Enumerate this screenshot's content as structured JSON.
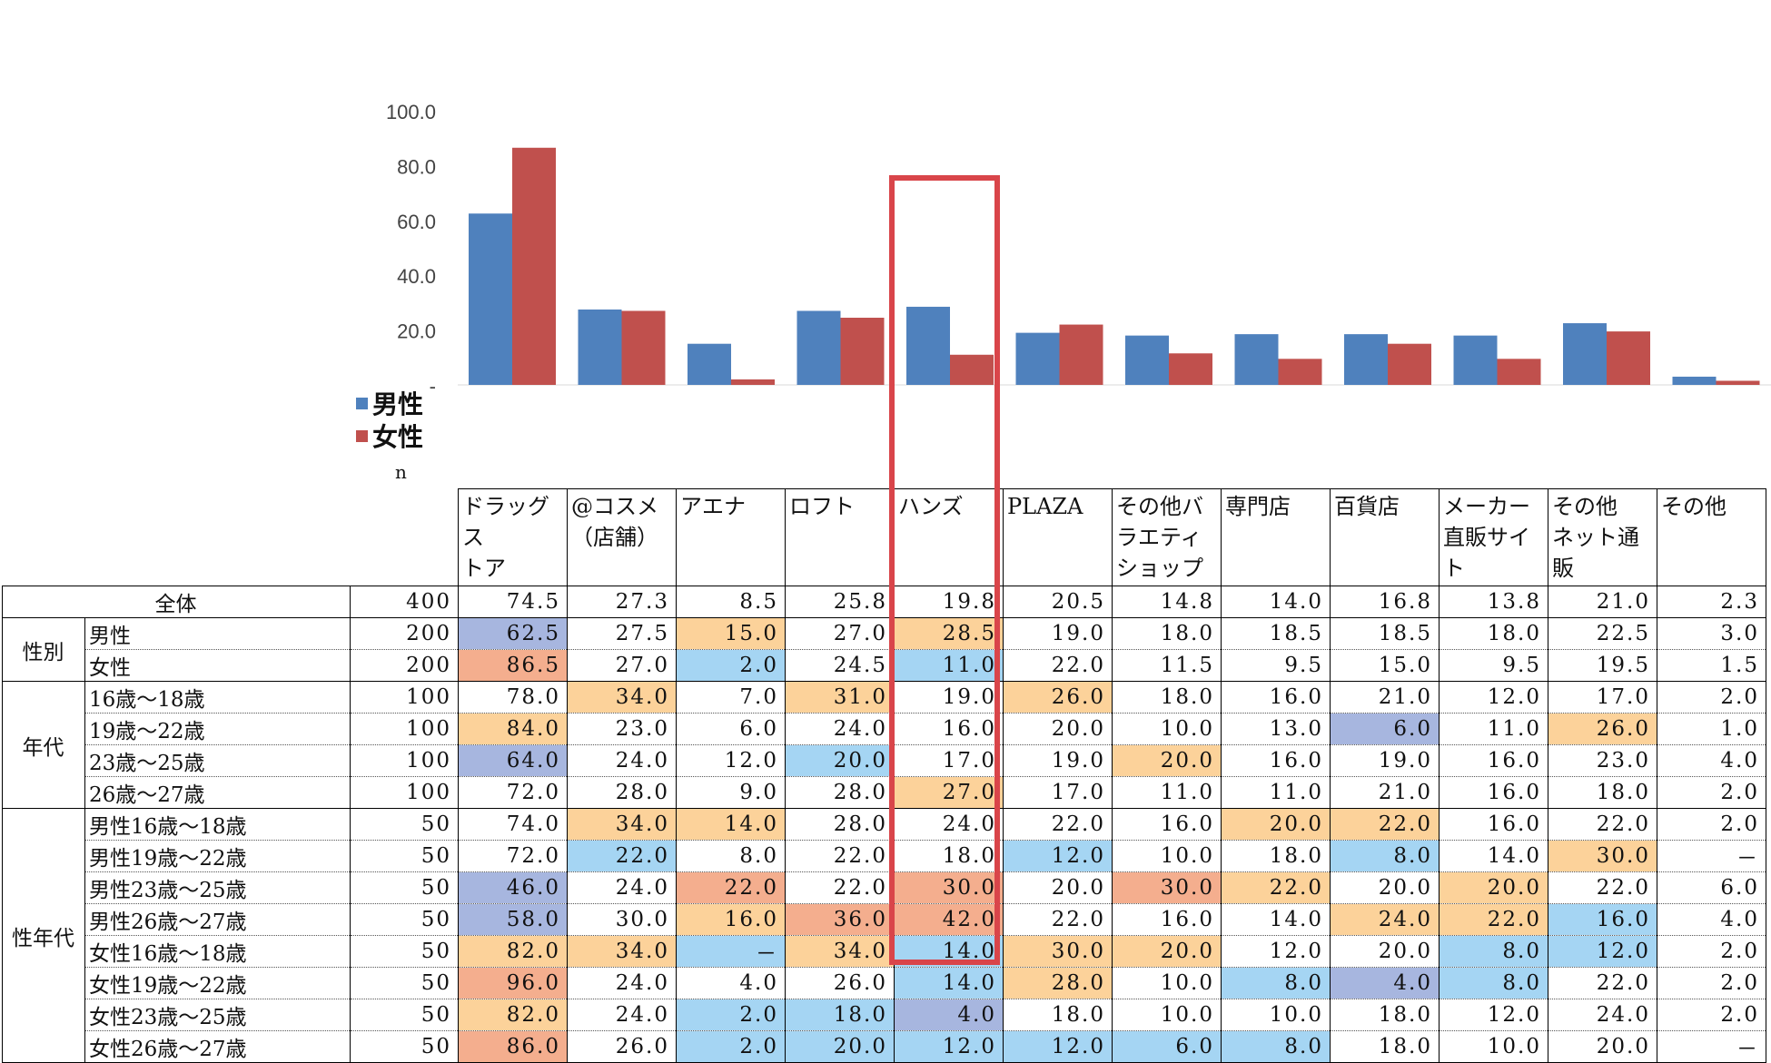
{
  "chart_data": {
    "type": "bar",
    "categories": [
      "ドラッグストア",
      "@コスメ（店舗）",
      "アエナ",
      "ロフト",
      "ハンズ",
      "PLAZA",
      "その他バラエティショップ",
      "専門店",
      "百貨店",
      "メーカー直販サイト",
      "その他ネット通販",
      "その他"
    ],
    "category_header_lines": [
      [
        "ドラッグス",
        "トア"
      ],
      [
        "@コスメ",
        "（店舗）"
      ],
      [
        "アエナ"
      ],
      [
        "ロフト"
      ],
      [
        "ハンズ"
      ],
      [
        "PLAZA"
      ],
      [
        "その他バ",
        "ラエティ",
        "ショップ"
      ],
      [
        "専門店"
      ],
      [
        "百貨店"
      ],
      [
        "メーカー",
        "直販サイ",
        "ト"
      ],
      [
        "その他",
        "ネット通販"
      ],
      [
        "その他"
      ]
    ],
    "series": [
      {
        "name": "男性",
        "color": "#4f81bd",
        "values": [
          62.5,
          27.5,
          15.0,
          27.0,
          28.5,
          19.0,
          18.0,
          18.5,
          18.5,
          18.0,
          22.5,
          3.0
        ]
      },
      {
        "name": "女性",
        "color": "#c0504d",
        "values": [
          86.5,
          27.0,
          2.0,
          24.5,
          11.0,
          22.0,
          11.5,
          9.5,
          15.0,
          9.5,
          19.5,
          1.5
        ]
      }
    ],
    "yticks": [
      "100.0",
      "80.0",
      "60.0",
      "40.0",
      "20.0",
      "-"
    ],
    "ylim": [
      0,
      100
    ],
    "legend_position": "bottom-left",
    "highlighted_category": "ハンズ",
    "table": {
      "n_header": "n",
      "rows": [
        {
          "group": "",
          "label": "全体",
          "n": "400",
          "values": [
            "74.5",
            "27.3",
            "8.5",
            "25.8",
            "19.8",
            "20.5",
            "14.8",
            "14.0",
            "16.8",
            "13.8",
            "21.0",
            "2.3"
          ],
          "shade": [
            "",
            "",
            "",
            "",
            "",
            "",
            "",
            "",
            "",
            "",
            "",
            ""
          ]
        },
        {
          "group": "性別",
          "label": "男性",
          "n": "200",
          "values": [
            "62.5",
            "27.5",
            "15.0",
            "27.0",
            "28.5",
            "19.0",
            "18.0",
            "18.5",
            "18.5",
            "18.0",
            "22.5",
            "3.0"
          ],
          "shade": [
            "lo2",
            "",
            "hi1",
            "",
            "hi1",
            "",
            "",
            "",
            "",
            "",
            "",
            ""
          ]
        },
        {
          "group": "性別",
          "label": "女性",
          "n": "200",
          "values": [
            "86.5",
            "27.0",
            "2.0",
            "24.5",
            "11.0",
            "22.0",
            "11.5",
            "9.5",
            "15.0",
            "9.5",
            "19.5",
            "1.5"
          ],
          "shade": [
            "hi2",
            "",
            "lo1",
            "",
            "lo1",
            "",
            "",
            "",
            "",
            "",
            "",
            ""
          ]
        },
        {
          "group": "年代",
          "label": "16歳～18歳",
          "n": "100",
          "values": [
            "78.0",
            "34.0",
            "7.0",
            "31.0",
            "19.0",
            "26.0",
            "18.0",
            "16.0",
            "21.0",
            "12.0",
            "17.0",
            "2.0"
          ],
          "shade": [
            "",
            "hi1",
            "",
            "hi1",
            "",
            "hi1",
            "",
            "",
            "",
            "",
            "",
            ""
          ]
        },
        {
          "group": "年代",
          "label": "19歳～22歳",
          "n": "100",
          "values": [
            "84.0",
            "23.0",
            "6.0",
            "24.0",
            "16.0",
            "20.0",
            "10.0",
            "13.0",
            "6.0",
            "11.0",
            "26.0",
            "1.0"
          ],
          "shade": [
            "hi1",
            "",
            "",
            "",
            "",
            "",
            "",
            "",
            "lo2",
            "",
            "hi1",
            ""
          ]
        },
        {
          "group": "年代",
          "label": "23歳～25歳",
          "n": "100",
          "values": [
            "64.0",
            "24.0",
            "12.0",
            "20.0",
            "17.0",
            "19.0",
            "20.0",
            "16.0",
            "19.0",
            "16.0",
            "23.0",
            "4.0"
          ],
          "shade": [
            "lo2",
            "",
            "",
            "lo1",
            "",
            "",
            "hi1",
            "",
            "",
            "",
            "",
            ""
          ]
        },
        {
          "group": "年代",
          "label": "26歳～27歳",
          "n": "100",
          "values": [
            "72.0",
            "28.0",
            "9.0",
            "28.0",
            "27.0",
            "17.0",
            "11.0",
            "11.0",
            "21.0",
            "16.0",
            "18.0",
            "2.0"
          ],
          "shade": [
            "",
            "",
            "",
            "",
            "hi1",
            "",
            "",
            "",
            "",
            "",
            "",
            ""
          ]
        },
        {
          "group": "性年代",
          "label": "男性16歳～18歳",
          "n": "50",
          "values": [
            "74.0",
            "34.0",
            "14.0",
            "28.0",
            "24.0",
            "22.0",
            "16.0",
            "20.0",
            "22.0",
            "16.0",
            "22.0",
            "2.0"
          ],
          "shade": [
            "",
            "hi1",
            "hi1",
            "",
            "",
            "",
            "",
            "hi1",
            "hi1",
            "",
            "",
            ""
          ]
        },
        {
          "group": "性年代",
          "label": "男性19歳～22歳",
          "n": "50",
          "values": [
            "72.0",
            "22.0",
            "8.0",
            "22.0",
            "18.0",
            "12.0",
            "10.0",
            "18.0",
            "8.0",
            "14.0",
            "30.0",
            "－"
          ],
          "shade": [
            "",
            "lo1",
            "",
            "",
            "",
            "lo1",
            "",
            "",
            "lo1",
            "",
            "hi1",
            ""
          ]
        },
        {
          "group": "性年代",
          "label": "男性23歳～25歳",
          "n": "50",
          "values": [
            "46.0",
            "24.0",
            "22.0",
            "22.0",
            "30.0",
            "20.0",
            "30.0",
            "22.0",
            "20.0",
            "20.0",
            "22.0",
            "6.0"
          ],
          "shade": [
            "lo2",
            "",
            "hi2",
            "",
            "hi2",
            "",
            "hi2",
            "hi1",
            "",
            "hi1",
            "",
            ""
          ]
        },
        {
          "group": "性年代",
          "label": "男性26歳～27歳",
          "n": "50",
          "values": [
            "58.0",
            "30.0",
            "16.0",
            "36.0",
            "42.0",
            "22.0",
            "16.0",
            "14.0",
            "24.0",
            "22.0",
            "16.0",
            "4.0"
          ],
          "shade": [
            "lo2",
            "",
            "hi1",
            "hi2",
            "hi2",
            "",
            "",
            "",
            "hi1",
            "hi1",
            "lo1",
            ""
          ]
        },
        {
          "group": "性年代",
          "label": "女性16歳～18歳",
          "n": "50",
          "values": [
            "82.0",
            "34.0",
            "－",
            "34.0",
            "14.0",
            "30.0",
            "20.0",
            "12.0",
            "20.0",
            "8.0",
            "12.0",
            "2.0"
          ],
          "shade": [
            "hi1",
            "hi1",
            "lo1",
            "hi1",
            "lo1",
            "hi1",
            "hi1",
            "",
            "",
            "lo1",
            "lo1",
            ""
          ]
        },
        {
          "group": "性年代",
          "label": "女性19歳～22歳",
          "n": "50",
          "values": [
            "96.0",
            "24.0",
            "4.0",
            "26.0",
            "14.0",
            "28.0",
            "10.0",
            "8.0",
            "4.0",
            "8.0",
            "22.0",
            "2.0"
          ],
          "shade": [
            "hi2",
            "",
            "",
            "",
            "lo1",
            "hi1",
            "",
            "lo1",
            "lo2",
            "lo1",
            "",
            ""
          ]
        },
        {
          "group": "性年代",
          "label": "女性23歳～25歳",
          "n": "50",
          "values": [
            "82.0",
            "24.0",
            "2.0",
            "18.0",
            "4.0",
            "18.0",
            "10.0",
            "10.0",
            "18.0",
            "12.0",
            "24.0",
            "2.0"
          ],
          "shade": [
            "hi1",
            "",
            "lo1",
            "lo1",
            "lo2",
            "",
            "",
            "",
            "",
            "",
            "",
            ""
          ]
        },
        {
          "group": "性年代",
          "label": "女性26歳～27歳",
          "n": "50",
          "values": [
            "86.0",
            "26.0",
            "2.0",
            "20.0",
            "12.0",
            "12.0",
            "6.0",
            "8.0",
            "18.0",
            "10.0",
            "20.0",
            "－"
          ],
          "shade": [
            "hi2",
            "",
            "lo1",
            "lo1",
            "lo1",
            "lo1",
            "lo1",
            "lo1",
            "",
            "",
            "",
            ""
          ]
        }
      ]
    }
  }
}
